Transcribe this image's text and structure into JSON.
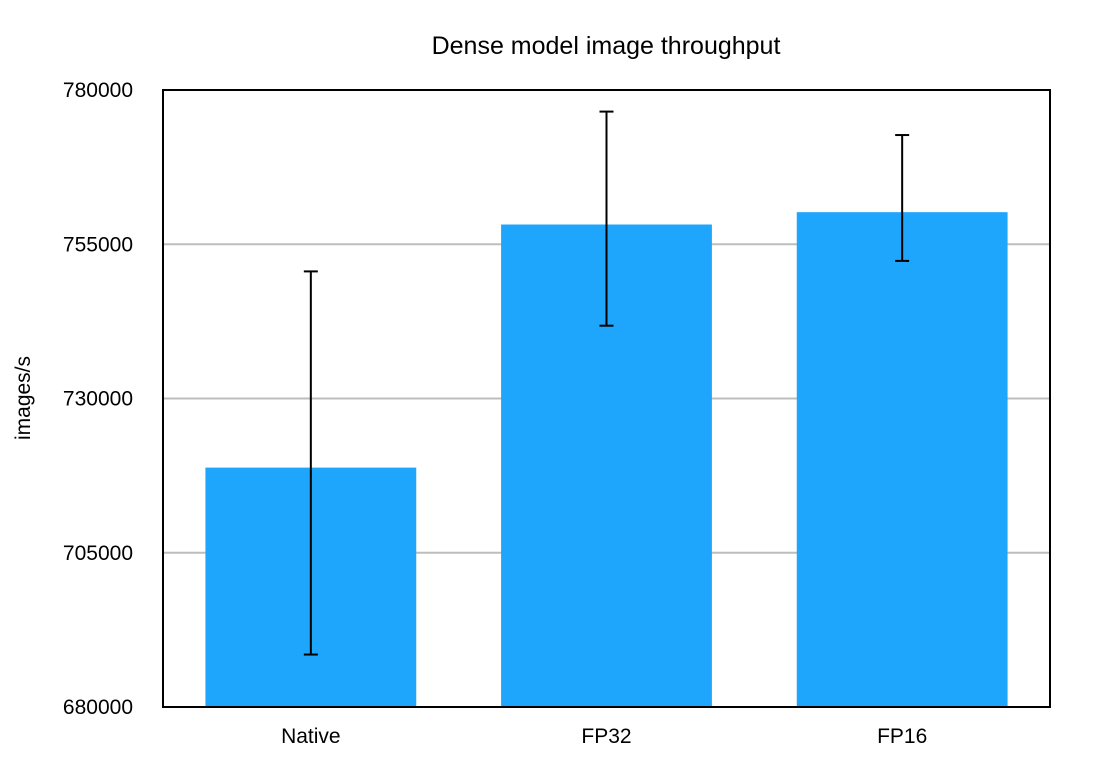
{
  "chart_data": {
    "type": "bar",
    "title": "Dense model image throughput",
    "xlabel": "",
    "ylabel": "images/s",
    "categories": [
      "Native",
      "FP32",
      "FP16"
    ],
    "values": [
      718800,
      758200,
      760200
    ],
    "error_low": [
      688500,
      741800,
      752300
    ],
    "error_high": [
      750600,
      776500,
      772700
    ],
    "ylim": [
      680000,
      780000
    ],
    "yticks": [
      "680000",
      "705000",
      "730000",
      "755000",
      "780000"
    ],
    "ytick_values": [
      680000,
      705000,
      730000,
      755000,
      780000
    ],
    "grid": true,
    "legend": "none",
    "bar_color": "#1ea5fc",
    "error_bar_color": "#000000"
  }
}
